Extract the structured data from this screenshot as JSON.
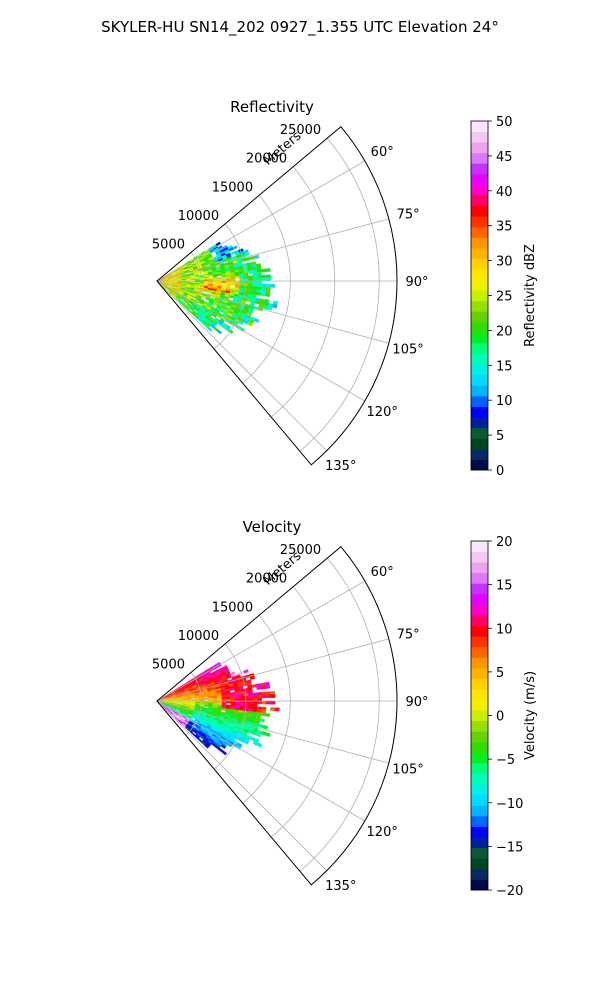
{
  "figure": {
    "suptitle": "SKYLER-HU  SN14_202  0927_1.355 UTC Elevation 24°"
  },
  "chart_data": [
    {
      "type": "heatmap",
      "projection": "polar-sector",
      "title": "Reflectivity",
      "radial_label": "Meters",
      "radial_ticks": [
        "5000",
        "10000",
        "15000",
        "20000",
        "25000"
      ],
      "radial_tick_values": [
        5000,
        10000,
        15000,
        20000,
        25000
      ],
      "rlim": [
        0,
        27000
      ],
      "angle_ticks": [
        "60°",
        "75°",
        "90°",
        "105°",
        "120°",
        "135°"
      ],
      "angle_tick_values": [
        60,
        75,
        90,
        105,
        120,
        135
      ],
      "angle_range": [
        50,
        140
      ],
      "grid": true,
      "data_extent": {
        "angle_range": [
          58,
          132
        ],
        "max_range_m": 13000
      },
      "colorbar": {
        "label": "Reflectivity dBZ",
        "range": [
          0,
          50
        ],
        "ticks": [
          "0",
          "5",
          "10",
          "15",
          "20",
          "25",
          "30",
          "35",
          "40",
          "45",
          "50"
        ],
        "tick_values": [
          0,
          5,
          10,
          15,
          20,
          25,
          30,
          35,
          40,
          45,
          50
        ],
        "colors": [
          "#000a4b",
          "#0a2a64",
          "#00461e",
          "#0a5a32",
          "#001ea0",
          "#0000ff",
          "#0064ff",
          "#00b4ff",
          "#00dcff",
          "#00f0e6",
          "#00ffb4",
          "#00ff78",
          "#00f028",
          "#32dc00",
          "#64d200",
          "#96e000",
          "#c8f000",
          "#f0f000",
          "#ffe600",
          "#ffd200",
          "#ffb400",
          "#ff9600",
          "#ff6400",
          "#ff3200",
          "#ff0000",
          "#ff0064",
          "#ff00c8",
          "#e600ff",
          "#c832ff",
          "#dc78ff",
          "#f0a0f0",
          "#f5c8f0",
          "#fae6fa"
        ]
      }
    },
    {
      "type": "heatmap",
      "projection": "polar-sector",
      "title": "Velocity",
      "radial_label": "Meters",
      "radial_ticks": [
        "5000",
        "10000",
        "15000",
        "20000",
        "25000"
      ],
      "radial_tick_values": [
        5000,
        10000,
        15000,
        20000,
        25000
      ],
      "rlim": [
        0,
        27000
      ],
      "angle_ticks": [
        "60°",
        "75°",
        "90°",
        "105°",
        "120°",
        "135°"
      ],
      "angle_tick_values": [
        60,
        75,
        90,
        105,
        120,
        135
      ],
      "angle_range": [
        50,
        140
      ],
      "grid": true,
      "data_extent": {
        "angle_range": [
          58,
          132
        ],
        "max_range_m": 13000
      },
      "colorbar": {
        "label": "Velocity (m/s)",
        "range": [
          -20,
          20
        ],
        "ticks": [
          "−20",
          "−15",
          "−10",
          "−5",
          "0",
          "5",
          "10",
          "15",
          "20"
        ],
        "tick_values": [
          -20,
          -15,
          -10,
          -5,
          0,
          5,
          10,
          15,
          20
        ],
        "colors": [
          "#000a4b",
          "#0a2a64",
          "#00461e",
          "#0a5a32",
          "#001ea0",
          "#0000ff",
          "#0064ff",
          "#00b4ff",
          "#00dcff",
          "#00f0e6",
          "#00ffb4",
          "#00ff78",
          "#00f028",
          "#32dc00",
          "#64d200",
          "#96e000",
          "#c8f000",
          "#f0f000",
          "#ffe600",
          "#ffd200",
          "#ffb400",
          "#ff9600",
          "#ff6400",
          "#ff3200",
          "#ff0000",
          "#ff0064",
          "#ff00c8",
          "#e600ff",
          "#c832ff",
          "#dc78ff",
          "#f0a0f0",
          "#f5c8f0",
          "#fae6fa"
        ]
      }
    }
  ]
}
